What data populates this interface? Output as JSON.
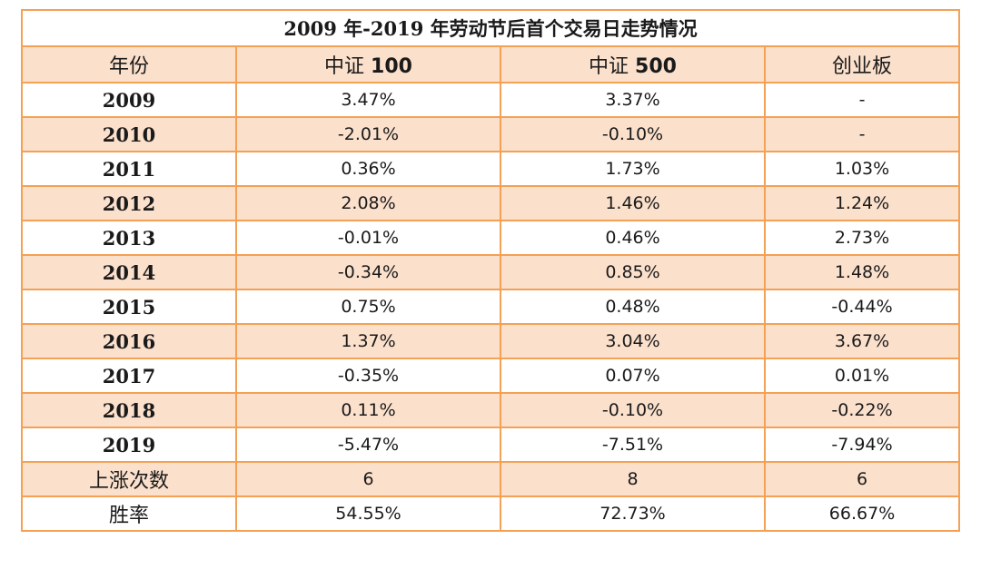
{
  "title": "2009 年-2019 年劳动节后首个交易日走势情况",
  "header": {
    "year": "年份",
    "col1_prefix": "中证 ",
    "col1_num": "100",
    "col2_prefix": "中证 ",
    "col2_num": "500",
    "col3": "创业板"
  },
  "rows": [
    {
      "year": "2009",
      "zz100": "3.47%",
      "zz500": "3.37%",
      "cyb": "-"
    },
    {
      "year": "2010",
      "zz100": "-2.01%",
      "zz500": "-0.10%",
      "cyb": "-"
    },
    {
      "year": "2011",
      "zz100": "0.36%",
      "zz500": "1.73%",
      "cyb": "1.03%"
    },
    {
      "year": "2012",
      "zz100": "2.08%",
      "zz500": "1.46%",
      "cyb": "1.24%"
    },
    {
      "year": "2013",
      "zz100": "-0.01%",
      "zz500": "0.46%",
      "cyb": "2.73%"
    },
    {
      "year": "2014",
      "zz100": "-0.34%",
      "zz500": "0.85%",
      "cyb": "1.48%"
    },
    {
      "year": "2015",
      "zz100": "0.75%",
      "zz500": "0.48%",
      "cyb": "-0.44%"
    },
    {
      "year": "2016",
      "zz100": "1.37%",
      "zz500": "3.04%",
      "cyb": "3.67%"
    },
    {
      "year": "2017",
      "zz100": "-0.35%",
      "zz500": "0.07%",
      "cyb": "0.01%"
    },
    {
      "year": "2018",
      "zz100": "0.11%",
      "zz500": "-0.10%",
      "cyb": "-0.22%"
    },
    {
      "year": "2019",
      "zz100": "-5.47%",
      "zz500": "-7.51%",
      "cyb": "-7.94%"
    }
  ],
  "summary": {
    "up_count": {
      "label": "上涨次数",
      "zz100": "6",
      "zz500": "8",
      "cyb": "6"
    },
    "win_rate": {
      "label": "胜率",
      "zz100": "54.55%",
      "zz500": "72.73%",
      "cyb": "66.67%"
    }
  },
  "colors": {
    "border": "#f4a155",
    "stripe": "#fbe0cc"
  }
}
